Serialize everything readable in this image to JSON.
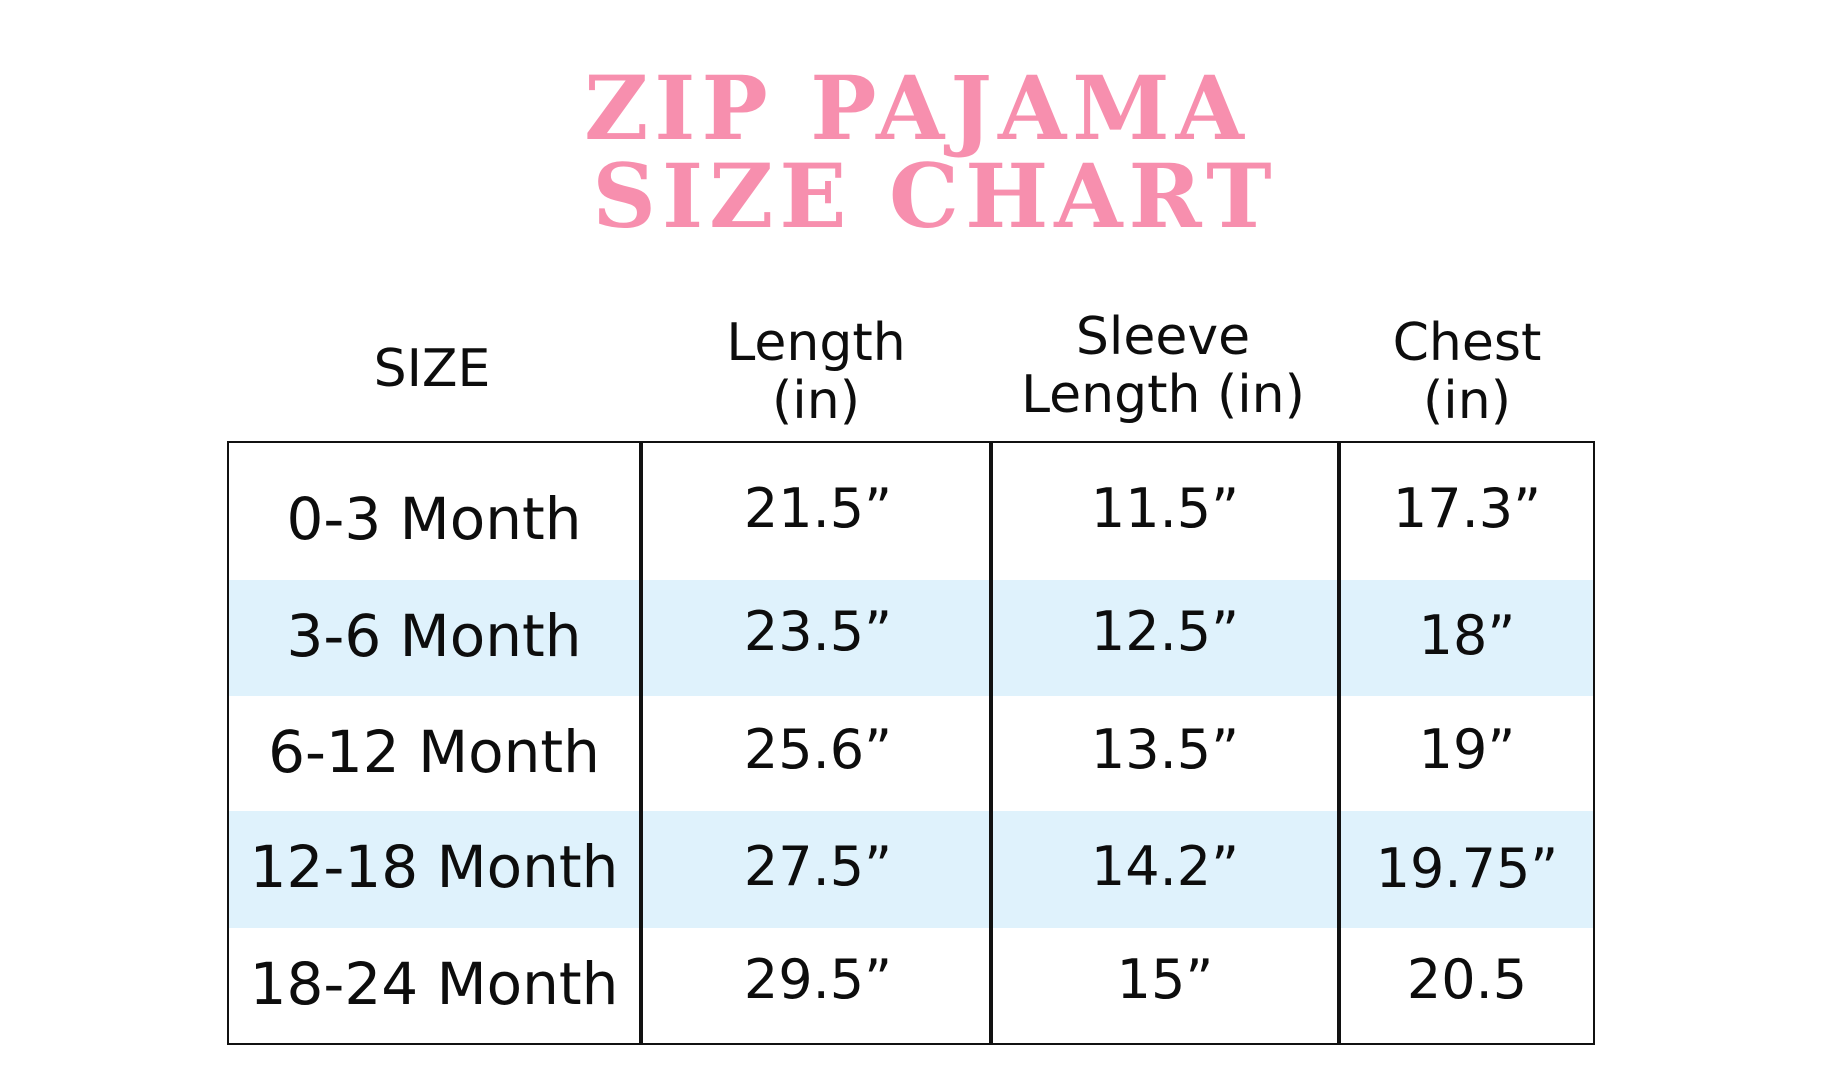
{
  "title": {
    "line1": "ZIP PAJAMA",
    "line2": "SIZE CHART"
  },
  "table": {
    "headers": [
      {
        "lines": [
          "SIZE"
        ]
      },
      {
        "lines": [
          "Length",
          "(in)"
        ]
      },
      {
        "lines": [
          "Sleeve",
          "Length (in)"
        ]
      },
      {
        "lines": [
          "Chest",
          "(in)"
        ]
      }
    ],
    "rows": [
      {
        "size": "0-3 Month",
        "length": "21.5”",
        "sleeve": "11.5”",
        "chest": "17.3”",
        "shaded": false
      },
      {
        "size": "3-6 Month",
        "length": "23.5”",
        "sleeve": "12.5”",
        "chest": "18”",
        "shaded": true
      },
      {
        "size": "6-12 Month",
        "length": "25.6”",
        "sleeve": "13.5”",
        "chest": "19”",
        "shaded": false
      },
      {
        "size": "12-18 Month",
        "length": "27.5”",
        "sleeve": "14.2”",
        "chest": "19.75”",
        "shaded": true
      },
      {
        "size": "18-24 Month",
        "length": "29.5”",
        "sleeve": "15”",
        "chest": "20.5",
        "shaded": false
      }
    ]
  },
  "colors": {
    "title": "#f78fae",
    "row_shade": "#dff2fc",
    "border": "#111111",
    "text": "#0d0d0d"
  }
}
